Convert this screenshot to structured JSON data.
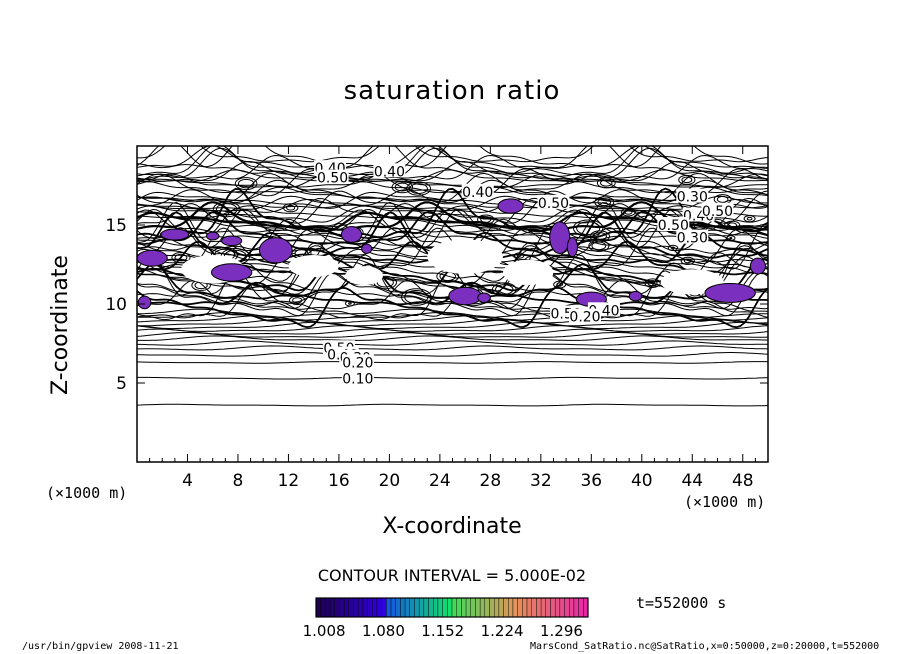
{
  "chart_data": {
    "type": "contour",
    "title": "saturation ratio",
    "xlabel": "X-coordinate",
    "ylabel": "Z-coordinate",
    "x_unit": "(×1000 m)",
    "y_unit": "(×1000 m)",
    "xlim": [
      0,
      50
    ],
    "ylim": [
      0,
      20
    ],
    "x_ticks": [
      "4",
      "8",
      "12",
      "16",
      "20",
      "24",
      "28",
      "32",
      "36",
      "40",
      "44",
      "48"
    ],
    "y_ticks": [
      "5",
      "10",
      "15"
    ],
    "contour_levels": [
      "0.10",
      "0.20",
      "0.30",
      "0.40",
      "0.50"
    ],
    "contour_interval_text": "CONTOUR INTERVAL = 5.000E-02",
    "colorbar_ticks": [
      "1.008",
      "1.080",
      "1.152",
      "1.224",
      "1.296"
    ],
    "colorbar_range": [
      1.0,
      1.33
    ],
    "shaded_color": "#7b2fbe",
    "time_text": "t=552000 s"
  },
  "footer": {
    "left": "/usr/bin/gpview  2008-11-21",
    "right": "MarsCond_SatRatio.nc@SatRatio,x=0:50000,z=0:20000,t=552000"
  }
}
